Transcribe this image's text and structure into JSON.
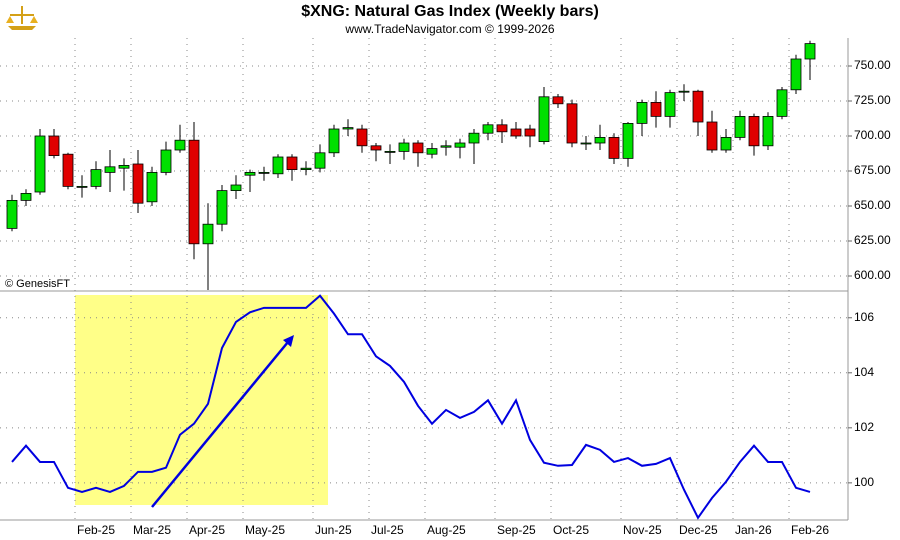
{
  "chart_data": [
    {
      "type": "candlestick",
      "title": "$XNG:  Natural Gas Index  (Weekly bars)",
      "subtitle": "www.TradeNavigator.com © 1999-2026",
      "annotation": "© GenesisFT",
      "up_color": "#00e000",
      "down_color": "#e00000",
      "open": [
        634,
        654,
        660,
        700,
        687,
        664,
        664,
        674,
        677,
        680,
        653,
        674,
        690,
        697,
        623,
        637,
        661,
        672,
        674,
        673,
        685,
        676,
        677,
        688,
        705,
        705,
        693,
        689,
        689,
        695,
        687,
        692,
        692,
        695,
        702,
        708,
        705,
        705,
        696,
        728,
        723,
        695,
        695,
        699,
        684,
        709,
        724,
        714,
        732,
        732,
        710,
        690,
        699,
        714,
        693,
        714,
        733,
        755
      ],
      "high": [
        658,
        662,
        705,
        705,
        688,
        672,
        682,
        690,
        684,
        690,
        678,
        696,
        708,
        710,
        652,
        665,
        672,
        676,
        678,
        687,
        687,
        682,
        694,
        708,
        712,
        708,
        695,
        694,
        698,
        697,
        695,
        697,
        698,
        705,
        710,
        712,
        710,
        708,
        735,
        730,
        726,
        700,
        708,
        702,
        710,
        726,
        732,
        733,
        737,
        733,
        718,
        705,
        718,
        716,
        717,
        735,
        758,
        768
      ],
      "low": [
        632,
        650,
        658,
        684,
        662,
        656,
        662,
        660,
        661,
        645,
        650,
        672,
        688,
        612,
        590,
        632,
        655,
        660,
        668,
        670,
        668,
        672,
        674,
        685,
        700,
        688,
        682,
        680,
        683,
        678,
        684,
        686,
        684,
        680,
        697,
        695,
        698,
        692,
        694,
        720,
        692,
        690,
        690,
        680,
        678,
        700,
        706,
        706,
        725,
        700,
        688,
        688,
        697,
        686,
        690,
        712,
        730,
        740
      ],
      "close": [
        654,
        659,
        700,
        686,
        664,
        664,
        676,
        678,
        679,
        652,
        674,
        690,
        697,
        623,
        637,
        661,
        665,
        674,
        674,
        685,
        676,
        677,
        688,
        705,
        706,
        693,
        690,
        689,
        695,
        688,
        691,
        693,
        695,
        702,
        708,
        703,
        700,
        700,
        728,
        723,
        695,
        695,
        699,
        684,
        709,
        724,
        714,
        731,
        732,
        710,
        690,
        699,
        714,
        693,
        714,
        733,
        755,
        766
      ],
      "ylim": [
        590,
        770
      ],
      "yticks": [
        {
          "value": 600,
          "label": "600.00"
        },
        {
          "value": 625,
          "label": "625.00"
        },
        {
          "value": 650,
          "label": "650.00"
        },
        {
          "value": 675,
          "label": "675.00"
        },
        {
          "value": 700,
          "label": "700.00"
        },
        {
          "value": 725,
          "label": "725.00"
        },
        {
          "value": 750,
          "label": "750.00"
        }
      ],
      "grid": true
    },
    {
      "type": "line",
      "categories": [
        null,
        null,
        null,
        null,
        null,
        null,
        "Feb-25",
        null,
        null,
        null,
        "Mar-25",
        null,
        null,
        null,
        "Apr-25",
        null,
        null,
        null,
        "May-25",
        null,
        null,
        null,
        null,
        "Jun-25",
        null,
        null,
        null,
        "Jul-25",
        null,
        null,
        null,
        "Aug-25",
        null,
        null,
        null,
        null,
        "Sep-25",
        null,
        null,
        null,
        "Oct-25",
        null,
        null,
        null,
        null,
        "Nov-25",
        null,
        null,
        null,
        "Dec-25",
        null,
        null,
        null,
        "Jan-26",
        null,
        null,
        null,
        "Feb-26"
      ],
      "series": [
        {
          "color": "#0000e0",
          "values": [
            100.76,
            101.35,
            100.76,
            100.76,
            99.82,
            99.67,
            99.82,
            99.67,
            99.89,
            100.4,
            100.4,
            100.55,
            101.75,
            102.15,
            102.87,
            104.9,
            105.85,
            106.2,
            106.36,
            106.36,
            106.36,
            106.36,
            106.8,
            106.15,
            105.4,
            105.4,
            104.6,
            104.25,
            103.67,
            102.8,
            102.15,
            102.65,
            102.36,
            102.58,
            103.0,
            102.15,
            103.0,
            101.56,
            100.73,
            100.62,
            100.65,
            101.38,
            101.2,
            100.76,
            100.9,
            100.62,
            100.69,
            100.9,
            99.75,
            98.73,
            99.45,
            100.04,
            100.76,
            101.35,
            100.76,
            100.76,
            99.82,
            99.67
          ]
        }
      ],
      "ylim": [
        98.65,
        106.9
      ],
      "yticks": [
        100,
        102,
        104,
        106
      ],
      "grid": true
    }
  ]
}
